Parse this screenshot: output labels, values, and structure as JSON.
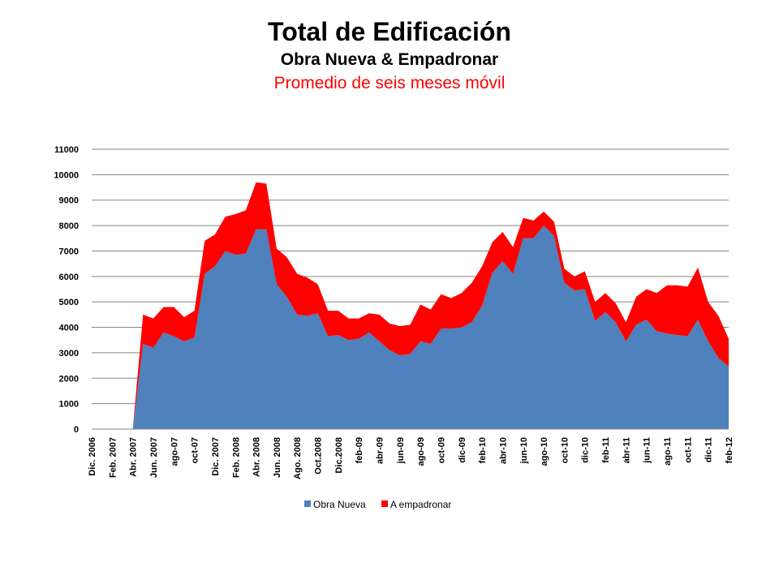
{
  "chart_data": {
    "type": "area",
    "title": "Total de Edificación",
    "subtitle": "Obra Nueva & Empadronar",
    "subtitle2": "Promedio de seis meses móvil",
    "ylim": [
      0,
      11000
    ],
    "yticks": [
      0,
      1000,
      2000,
      3000,
      4000,
      5000,
      6000,
      7000,
      8000,
      9000,
      10000,
      11000
    ],
    "grid": true,
    "stacked": true,
    "legend_position": "bottom",
    "tick_labels": [
      {
        "index": 0,
        "label": "Dic. 2006"
      },
      {
        "index": 2,
        "label": "Feb. 2007"
      },
      {
        "index": 4,
        "label": "Abr. 2007"
      },
      {
        "index": 6,
        "label": "Jun. 2007"
      },
      {
        "index": 8,
        "label": "ago-07"
      },
      {
        "index": 10,
        "label": "oct-07"
      },
      {
        "index": 12,
        "label": "Dic. 2007"
      },
      {
        "index": 14,
        "label": "Feb. 2008"
      },
      {
        "index": 16,
        "label": "Abr. 2008"
      },
      {
        "index": 18,
        "label": "Jun. 2008"
      },
      {
        "index": 20,
        "label": "Ago. 2008"
      },
      {
        "index": 22,
        "label": "Oct.2008"
      },
      {
        "index": 24,
        "label": "Dic.2008"
      },
      {
        "index": 26,
        "label": "feb-09"
      },
      {
        "index": 28,
        "label": "abr-09"
      },
      {
        "index": 30,
        "label": "jun-09"
      },
      {
        "index": 32,
        "label": "ago-09"
      },
      {
        "index": 34,
        "label": "oct-09"
      },
      {
        "index": 36,
        "label": "dic-09"
      },
      {
        "index": 38,
        "label": "feb-10"
      },
      {
        "index": 40,
        "label": "abr-10"
      },
      {
        "index": 42,
        "label": "jun-10"
      },
      {
        "index": 44,
        "label": "ago-10"
      },
      {
        "index": 46,
        "label": "oct-10"
      },
      {
        "index": 48,
        "label": "dic-10"
      },
      {
        "index": 50,
        "label": "feb-11"
      },
      {
        "index": 52,
        "label": "abr-11"
      },
      {
        "index": 54,
        "label": "jun-11"
      },
      {
        "index": 56,
        "label": "ago-11"
      },
      {
        "index": 58,
        "label": "oct-11"
      },
      {
        "index": 60,
        "label": "dic-11"
      },
      {
        "index": 62,
        "label": "feb-12"
      }
    ],
    "series": [
      {
        "name": "Obra Nueva",
        "color": "#4f81bd",
        "values": [
          0,
          0,
          0,
          0,
          0,
          3350,
          3200,
          3800,
          3650,
          3450,
          3600,
          6100,
          6400,
          7000,
          6850,
          6900,
          7850,
          7850,
          5700,
          5200,
          4500,
          4450,
          4550,
          3650,
          3700,
          3500,
          3550,
          3800,
          3450,
          3100,
          2900,
          2950,
          3450,
          3350,
          3950,
          3950,
          4000,
          4200,
          4850,
          6150,
          6600,
          6100,
          7500,
          7500,
          8000,
          7600,
          5750,
          5450,
          5500,
          4250,
          4600,
          4200,
          3450,
          4100,
          4300,
          3850,
          3750,
          3700,
          3650,
          4300,
          3450,
          2800,
          2450
        ]
      },
      {
        "name": "A empadronar",
        "color": "#ff0000",
        "values": [
          0,
          0,
          0,
          0,
          0,
          1150,
          1150,
          1000,
          1150,
          950,
          1050,
          1300,
          1250,
          1350,
          1600,
          1700,
          1850,
          1800,
          1400,
          1550,
          1600,
          1500,
          1150,
          1000,
          950,
          850,
          800,
          750,
          1050,
          1050,
          1150,
          1150,
          1450,
          1350,
          1350,
          1200,
          1350,
          1550,
          1550,
          1200,
          1150,
          1050,
          800,
          700,
          550,
          550,
          550,
          550,
          700,
          750,
          750,
          750,
          750,
          1100,
          1200,
          1500,
          1900,
          1950,
          1950,
          2050,
          1550,
          1650,
          1100
        ]
      }
    ]
  }
}
